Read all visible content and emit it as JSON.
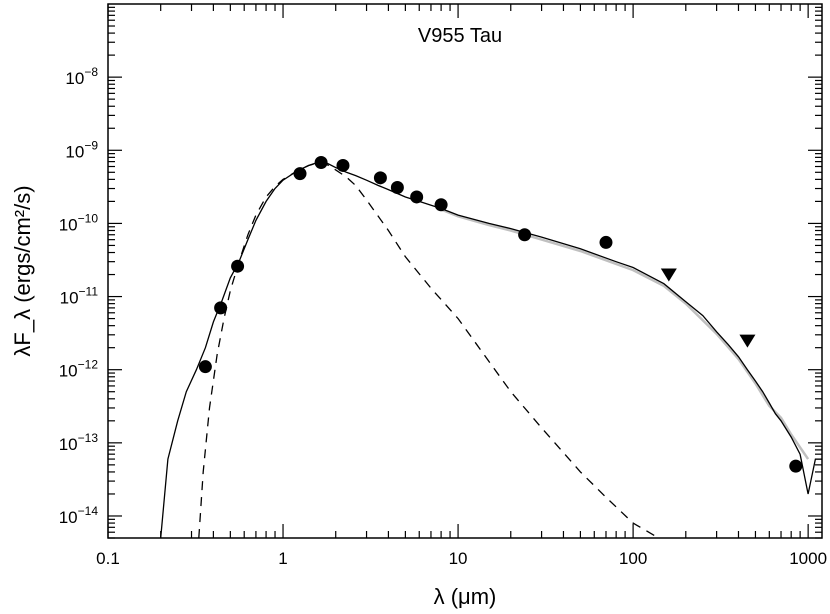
{
  "chart_data": {
    "type": "scatter",
    "title": "V955 Tau",
    "xlabel": "λ (μm)",
    "ylabel": "λF_λ (ergs/cm²/s)",
    "xscale": "log",
    "yscale": "log",
    "xlim": [
      0.1,
      1200
    ],
    "ylim": [
      5e-15,
      1e-07
    ],
    "grid": false,
    "x_ticks": [
      {
        "value": 0.1,
        "label": "0.1"
      },
      {
        "value": 1,
        "label": "1"
      },
      {
        "value": 10,
        "label": "10"
      },
      {
        "value": 100,
        "label": "100"
      },
      {
        "value": 1000,
        "label": "1000"
      }
    ],
    "y_ticks": [
      {
        "value": 1e-14,
        "base": "10",
        "exp": "−14"
      },
      {
        "value": 1e-13,
        "base": "10",
        "exp": "−13"
      },
      {
        "value": 1e-12,
        "base": "10",
        "exp": "−12"
      },
      {
        "value": 1e-11,
        "base": "10",
        "exp": "−11"
      },
      {
        "value": 1e-10,
        "base": "10",
        "exp": "−10"
      },
      {
        "value": 1e-09,
        "base": "10",
        "exp": "−9"
      },
      {
        "value": 1e-08,
        "base": "10",
        "exp": "−8"
      }
    ],
    "series": [
      {
        "kind": "points",
        "marker": "circle",
        "color": "#000000",
        "x": [
          0.36,
          0.44,
          0.55,
          1.25,
          1.65,
          2.2,
          3.6,
          4.5,
          5.8,
          8.0,
          24,
          70,
          850
        ],
        "y": [
          1.1e-12,
          7e-12,
          2.6e-11,
          4.8e-10,
          6.8e-10,
          6.2e-10,
          4.2e-10,
          3.1e-10,
          2.3e-10,
          1.8e-10,
          7e-11,
          5.5e-11,
          4.8e-14
        ]
      },
      {
        "kind": "upper-limits",
        "marker": "triangle-down",
        "color": "#000000",
        "x": [
          160,
          450
        ],
        "y": [
          2e-11,
          2.5e-12
        ]
      },
      {
        "kind": "line",
        "style": "solid",
        "color": "#000000",
        "x": [
          0.2,
          0.22,
          0.25,
          0.28,
          0.32,
          0.36,
          0.4,
          0.45,
          0.5,
          0.56,
          0.63,
          0.7,
          0.8,
          0.9,
          1.0,
          1.2,
          1.4,
          1.6,
          1.8,
          2.0,
          2.3,
          2.6,
          3.0,
          3.5,
          4.0,
          5.0,
          6.0,
          8.0,
          10,
          15,
          20,
          30,
          50,
          80,
          100,
          150,
          200,
          250,
          300,
          350,
          400,
          450,
          500,
          550,
          600,
          650,
          700,
          800,
          900,
          1000,
          1100,
          1200
        ],
        "y": [
          5e-15,
          6e-14,
          2e-13,
          5e-13,
          1e-12,
          2e-12,
          4.5e-12,
          9e-12,
          1.8e-11,
          3e-11,
          6e-11,
          1.1e-10,
          2e-10,
          3e-10,
          3.9e-10,
          5.2e-10,
          6.2e-10,
          6.9e-10,
          6.6e-10,
          5.8e-10,
          5e-10,
          4.5e-10,
          3.9e-10,
          3.3e-10,
          2.9e-10,
          2.3e-10,
          2e-10,
          1.6e-10,
          1.3e-10,
          1e-10,
          8.5e-11,
          6.5e-11,
          4.5e-11,
          3e-11,
          2.5e-11,
          1.5e-11,
          8.5e-12,
          5.5e-12,
          3.3e-12,
          2.2e-12,
          1.5e-12,
          1e-12,
          7e-13,
          5e-13,
          3.5e-13,
          2.5e-13,
          2e-13,
          1.2e-13,
          7e-14,
          2e-14,
          6e-14,
          6e-14
        ]
      },
      {
        "kind": "line",
        "style": "solid",
        "color": "#c0c0c0",
        "x": [
          8,
          10,
          15,
          20,
          30,
          50,
          80,
          100,
          150,
          200,
          300,
          400,
          500,
          600,
          700,
          800,
          1000
        ],
        "y": [
          1.55e-10,
          1.25e-10,
          9.5e-11,
          8e-11,
          6e-11,
          4.2e-11,
          2.8e-11,
          2.3e-11,
          1.4e-11,
          8e-12,
          3.1e-12,
          1.4e-12,
          6.5e-13,
          3.2e-13,
          2.2e-13,
          1.3e-13,
          6e-14
        ]
      },
      {
        "kind": "line",
        "style": "dashed",
        "color": "#000000",
        "x": [
          0.33,
          0.35,
          0.38,
          0.42,
          0.46,
          0.5,
          0.56,
          0.63,
          0.7,
          0.8,
          0.9,
          1.0,
          1.2,
          1.4,
          1.6,
          1.8,
          2.0,
          2.3,
          2.6,
          3.0,
          4.0,
          5.0,
          7.0,
          10,
          15,
          20,
          30,
          50,
          70,
          100,
          140
        ],
        "y": [
          5e-15,
          4e-14,
          3e-13,
          1.6e-12,
          5e-12,
          1.2e-11,
          3e-11,
          7e-11,
          1.3e-10,
          2.3e-10,
          3.2e-10,
          4e-10,
          5.2e-10,
          6.2e-10,
          6.8e-10,
          6.3e-10,
          5.4e-10,
          4.3e-10,
          3.3e-10,
          2.1e-10,
          8e-11,
          3.5e-11,
          1.3e-11,
          5e-12,
          1.3e-12,
          5e-13,
          1.6e-13,
          4e-14,
          1.8e-14,
          8e-15,
          5e-15
        ]
      }
    ]
  }
}
